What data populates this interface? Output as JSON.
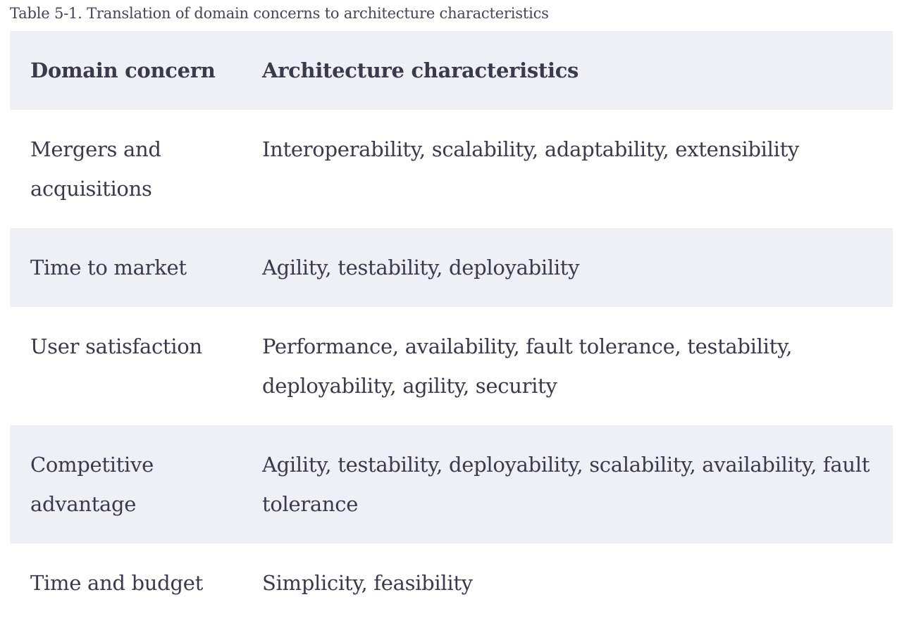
{
  "caption": "Table 5-1. Translation of domain concerns to architecture characteristics",
  "table": {
    "headers": [
      "Domain concern",
      "Architecture characteristics"
    ],
    "rows": [
      {
        "concern": "Mergers and acquisitions",
        "characteristics": "Interoperability, scalability, adaptability, extensibility"
      },
      {
        "concern": "Time to market",
        "characteristics": "Agility, testability, deployability"
      },
      {
        "concern": "User satisfaction",
        "characteristics": "Performance, availability, fault tolerance, testability, deployability, agility, security"
      },
      {
        "concern": "Competitive advantage",
        "characteristics": "Agility, testability, deployability, scalability, availability, fault tolerance"
      },
      {
        "concern": "Time and budget",
        "characteristics": "Simplicity, feasibility"
      }
    ]
  },
  "colors": {
    "shaded_row": "#eef0f5",
    "text": "#3a3a4c"
  }
}
